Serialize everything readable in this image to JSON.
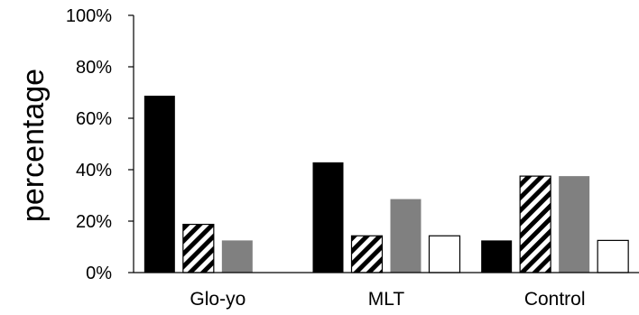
{
  "chart_data": {
    "type": "bar",
    "categories": [
      "Glo-yo",
      "MLT",
      "Control"
    ],
    "series": [
      {
        "values": [
          68.75,
          42.86,
          12.5
        ],
        "fill": "solid-black",
        "color": "#000000"
      },
      {
        "values": [
          18.75,
          14.29,
          37.5
        ],
        "fill": "diagonal-hatch",
        "color": "#000000"
      },
      {
        "values": [
          12.5,
          28.57,
          37.5
        ],
        "fill": "solid-gray",
        "color": "#808080"
      },
      {
        "values": [
          0,
          14.29,
          12.5
        ],
        "fill": "white-outline",
        "color": "#ffffff"
      }
    ],
    "title": "",
    "xlabel": "",
    "ylabel": "percentage",
    "ylim": [
      0,
      100
    ],
    "yticks": [
      "0%",
      "20%",
      "40%",
      "60%",
      "80%",
      "100%"
    ],
    "grid": false,
    "legend": "none"
  }
}
